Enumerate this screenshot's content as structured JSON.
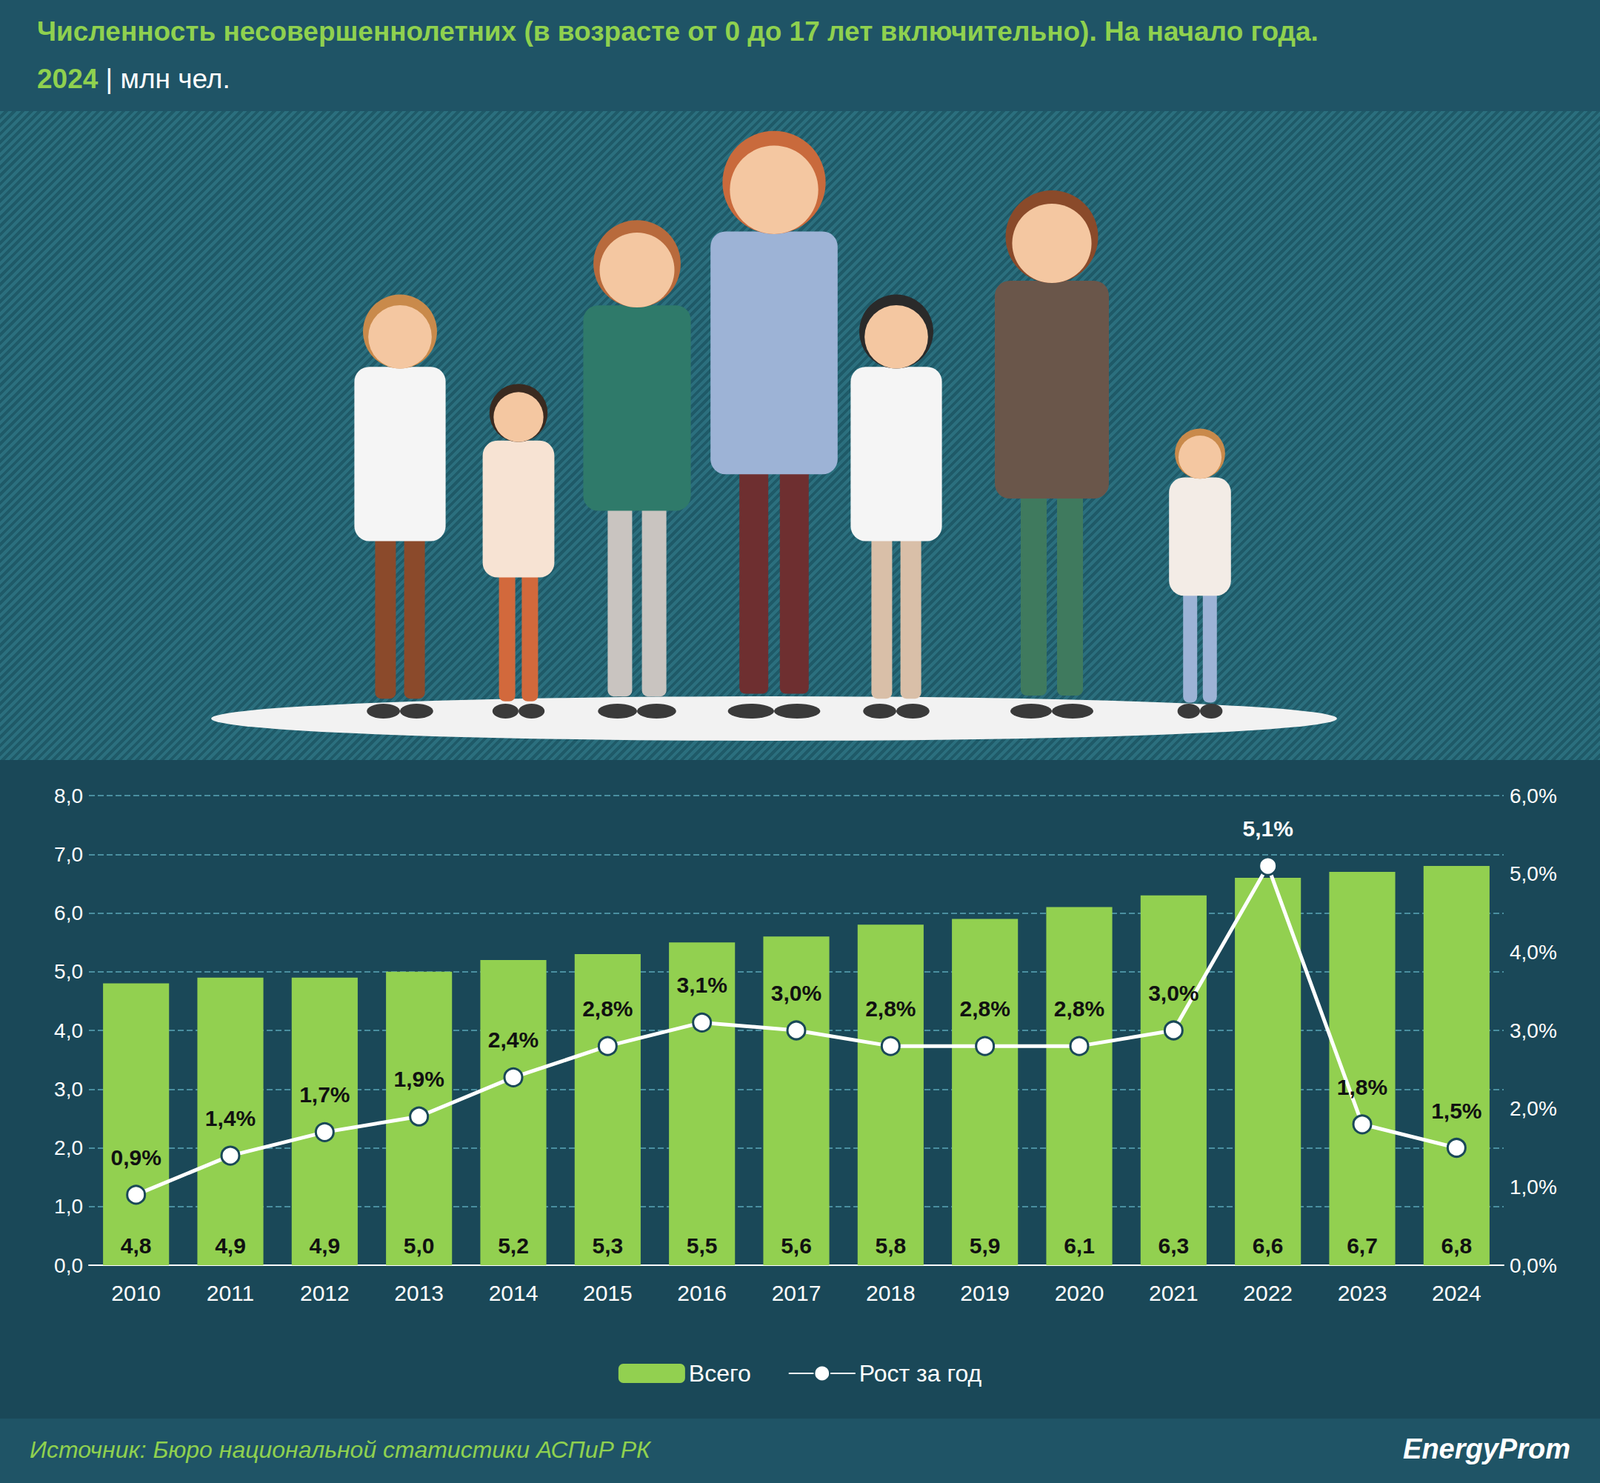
{
  "chart_data": {
    "type": "bar",
    "title": "Численность несовершеннолетних (в возрасте от 0 до 17 лет включительно). На начало года.",
    "subtitle": "2024 | млн чел.",
    "source": "Источник: Бюро национальной статистики АСПиР РК",
    "logo": "EnergyProm",
    "categories": [
      "2010",
      "2011",
      "2012",
      "2013",
      "2014",
      "2015",
      "2016",
      "2017",
      "2018",
      "2019",
      "2020",
      "2021",
      "2022",
      "2023",
      "2024"
    ],
    "series": [
      {
        "name": "Всего",
        "type": "bar",
        "color": "#92d050",
        "values": [
          4.8,
          4.9,
          4.9,
          5.0,
          5.2,
          5.3,
          5.5,
          5.6,
          5.8,
          5.9,
          6.1,
          6.3,
          6.6,
          6.7,
          6.8
        ],
        "value_labels": [
          "4,8",
          "4,9",
          "4,9",
          "5,0",
          "5,2",
          "5,3",
          "5,5",
          "5,6",
          "5,8",
          "5,9",
          "6,1",
          "6,3",
          "6,6",
          "6,7",
          "6,8"
        ]
      },
      {
        "name": "Рост за год",
        "type": "line",
        "axis": "y2",
        "color": "#ffffff",
        "marker": "circle",
        "values": [
          0.9,
          1.4,
          1.7,
          1.9,
          2.4,
          2.8,
          3.1,
          3.0,
          2.8,
          2.8,
          2.8,
          3.0,
          5.1,
          1.8,
          1.5
        ],
        "value_labels": [
          "0,9%",
          "1,4%",
          "1,7%",
          "1,9%",
          "2,4%",
          "2,8%",
          "3,1%",
          "3,0%",
          "2,8%",
          "2,8%",
          "2,8%",
          "3,0%",
          "5,1%",
          "1,8%",
          "1,5%"
        ]
      }
    ],
    "ylim": [
      0,
      8
    ],
    "yticks": [
      {
        "value": 0,
        "label": "0,0"
      },
      {
        "value": 1,
        "label": "1,0"
      },
      {
        "value": 2,
        "label": "2,0"
      },
      {
        "value": 3,
        "label": "3,0"
      },
      {
        "value": 4,
        "label": "4,0"
      },
      {
        "value": 5,
        "label": "5,0"
      },
      {
        "value": 6,
        "label": "6,0"
      },
      {
        "value": 7,
        "label": "7,0"
      },
      {
        "value": 8,
        "label": "8,0"
      }
    ],
    "y2lim": [
      0,
      6
    ],
    "y2ticks": [
      {
        "value": 0,
        "label": "0,0%"
      },
      {
        "value": 1,
        "label": "1,0%"
      },
      {
        "value": 2,
        "label": "2,0%"
      },
      {
        "value": 3,
        "label": "3,0%"
      },
      {
        "value": 4,
        "label": "4,0%"
      },
      {
        "value": 5,
        "label": "5,0%"
      },
      {
        "value": 6,
        "label": "6,0%"
      }
    ],
    "grid": true,
    "legend": "bottom",
    "data_labels": true
  }
}
